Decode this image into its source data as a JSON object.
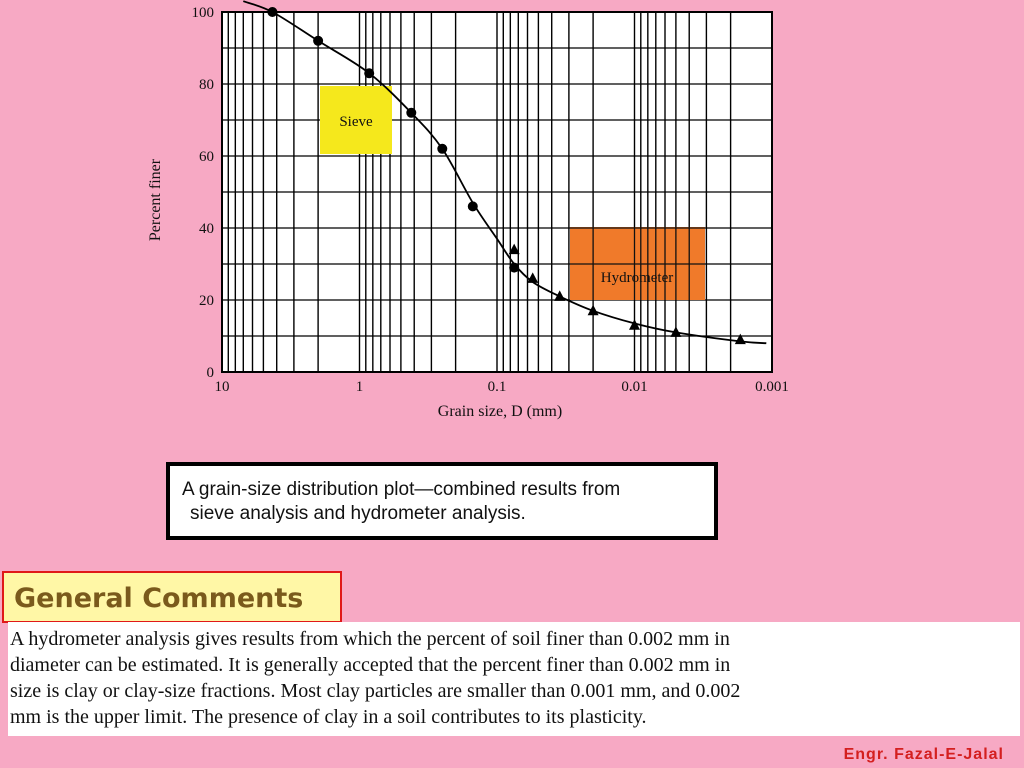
{
  "chart_data": {
    "type": "scatter",
    "title": "",
    "xlabel": "Grain size, D (mm)",
    "ylabel": "Percent finer",
    "x_scale": "log",
    "x_reversed": true,
    "xlim": [
      10,
      0.001
    ],
    "ylim": [
      0,
      100
    ],
    "x_ticks": [
      {
        "value": 10,
        "label": "10"
      },
      {
        "value": 1,
        "label": "1"
      },
      {
        "value": 0.1,
        "label": "0.1"
      },
      {
        "value": 0.01,
        "label": "0.01"
      },
      {
        "value": 0.001,
        "label": "0.001"
      }
    ],
    "y_ticks": [
      {
        "value": 0,
        "label": "0"
      },
      {
        "value": 20,
        "label": "20"
      },
      {
        "value": 40,
        "label": "40"
      },
      {
        "value": 60,
        "label": "60"
      },
      {
        "value": 80,
        "label": "80"
      },
      {
        "value": 100,
        "label": "100"
      }
    ],
    "grid": true,
    "series": [
      {
        "marker": "circle",
        "points": [
          {
            "x": 4.3,
            "y": 100
          },
          {
            "x": 2.0,
            "y": 92
          },
          {
            "x": 0.85,
            "y": 83
          },
          {
            "x": 0.42,
            "y": 72
          },
          {
            "x": 0.25,
            "y": 62
          },
          {
            "x": 0.15,
            "y": 46
          },
          {
            "x": 0.075,
            "y": 29
          }
        ]
      },
      {
        "marker": "triangle",
        "points": [
          {
            "x": 0.075,
            "y": 34
          },
          {
            "x": 0.055,
            "y": 26
          },
          {
            "x": 0.035,
            "y": 21
          },
          {
            "x": 0.02,
            "y": 17
          },
          {
            "x": 0.01,
            "y": 13
          },
          {
            "x": 0.005,
            "y": 11
          },
          {
            "x": 0.0017,
            "y": 9
          }
        ]
      }
    ],
    "curve": [
      {
        "x": 7.0,
        "y": 103
      },
      {
        "x": 4.3,
        "y": 100
      },
      {
        "x": 2.0,
        "y": 92
      },
      {
        "x": 0.85,
        "y": 83
      },
      {
        "x": 0.42,
        "y": 72
      },
      {
        "x": 0.25,
        "y": 62
      },
      {
        "x": 0.15,
        "y": 47
      },
      {
        "x": 0.1,
        "y": 37
      },
      {
        "x": 0.075,
        "y": 30
      },
      {
        "x": 0.055,
        "y": 25
      },
      {
        "x": 0.035,
        "y": 21
      },
      {
        "x": 0.02,
        "y": 17
      },
      {
        "x": 0.01,
        "y": 13.5
      },
      {
        "x": 0.005,
        "y": 11
      },
      {
        "x": 0.0017,
        "y": 8.5
      },
      {
        "x": 0.0011,
        "y": 8
      }
    ],
    "annotations": [
      {
        "text": "Sieve",
        "color": "#f5e81c"
      },
      {
        "text": "Hydrometer",
        "color": "#f07a2a"
      }
    ]
  },
  "caption": {
    "line1": "A grain-size distribution plot—combined results from",
    "line2": "sieve analysis and hydrometer analysis."
  },
  "section": {
    "heading": "General Comments",
    "body_lines": [
      "A hydrometer analysis gives results from which the percent of soil finer than 0.002 mm in",
      "diameter can be estimated. It is generally accepted that the percent finer than 0.002 mm in",
      "size is clay or clay-size fractions. Most clay particles are smaller than 0.001 mm, and 0.002",
      "mm is the upper limit. The presence of clay in a soil contributes to its plasticity."
    ]
  },
  "credit": "Engr. Fazal-E-Jalal",
  "colors": {
    "background": "#f7a9c4",
    "heading_text": "#7a5a1c",
    "heading_fill": "#fff7a6",
    "heading_border": "#e01818",
    "credit": "#d41f1f"
  }
}
